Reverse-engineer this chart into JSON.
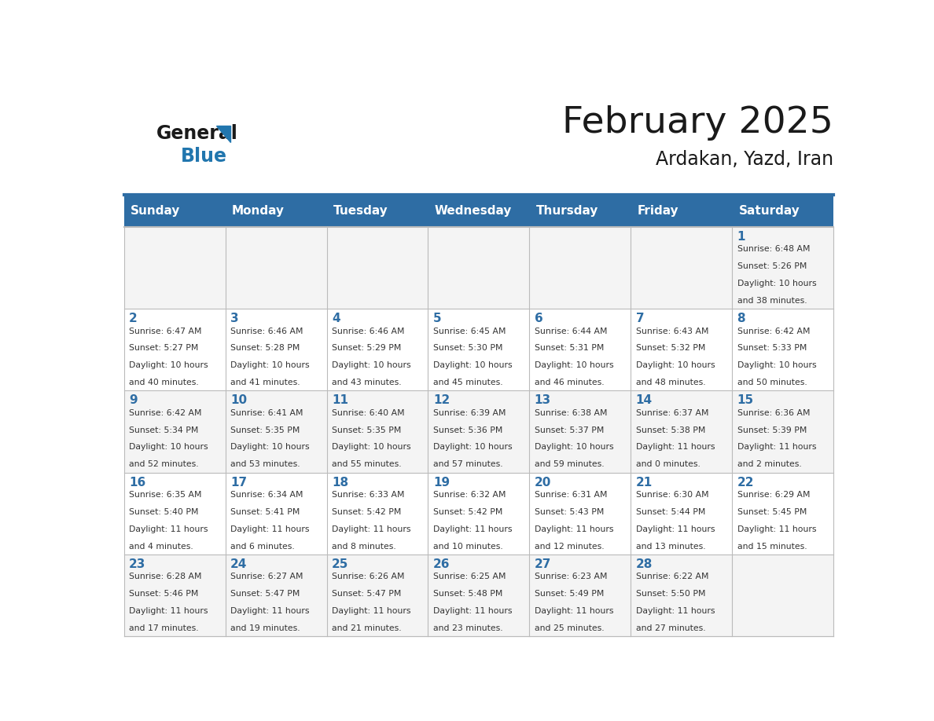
{
  "title": "February 2025",
  "subtitle": "Ardakan, Yazd, Iran",
  "days_of_week": [
    "Sunday",
    "Monday",
    "Tuesday",
    "Wednesday",
    "Thursday",
    "Friday",
    "Saturday"
  ],
  "header_bg": "#2E6DA4",
  "header_text": "#FFFFFF",
  "cell_bg_light": "#F4F4F4",
  "cell_bg_white": "#FFFFFF",
  "cell_border": "#BBBBBB",
  "day_number_color": "#2E6DA4",
  "info_text_color": "#333333",
  "title_color": "#1a1a1a",
  "logo_general_color": "#1a1a1a",
  "logo_blue_color": "#2176AE",
  "top_border_color": "#2E6DA4",
  "calendar_data": [
    [
      null,
      null,
      null,
      null,
      null,
      null,
      1
    ],
    [
      2,
      3,
      4,
      5,
      6,
      7,
      8
    ],
    [
      9,
      10,
      11,
      12,
      13,
      14,
      15
    ],
    [
      16,
      17,
      18,
      19,
      20,
      21,
      22
    ],
    [
      23,
      24,
      25,
      26,
      27,
      28,
      null
    ]
  ],
  "cell_info": {
    "1": {
      "sunrise": "6:48 AM",
      "sunset": "5:26 PM",
      "daylight_line1": "10 hours",
      "daylight_line2": "and 38 minutes."
    },
    "2": {
      "sunrise": "6:47 AM",
      "sunset": "5:27 PM",
      "daylight_line1": "10 hours",
      "daylight_line2": "and 40 minutes."
    },
    "3": {
      "sunrise": "6:46 AM",
      "sunset": "5:28 PM",
      "daylight_line1": "10 hours",
      "daylight_line2": "and 41 minutes."
    },
    "4": {
      "sunrise": "6:46 AM",
      "sunset": "5:29 PM",
      "daylight_line1": "10 hours",
      "daylight_line2": "and 43 minutes."
    },
    "5": {
      "sunrise": "6:45 AM",
      "sunset": "5:30 PM",
      "daylight_line1": "10 hours",
      "daylight_line2": "and 45 minutes."
    },
    "6": {
      "sunrise": "6:44 AM",
      "sunset": "5:31 PM",
      "daylight_line1": "10 hours",
      "daylight_line2": "and 46 minutes."
    },
    "7": {
      "sunrise": "6:43 AM",
      "sunset": "5:32 PM",
      "daylight_line1": "10 hours",
      "daylight_line2": "and 48 minutes."
    },
    "8": {
      "sunrise": "6:42 AM",
      "sunset": "5:33 PM",
      "daylight_line1": "10 hours",
      "daylight_line2": "and 50 minutes."
    },
    "9": {
      "sunrise": "6:42 AM",
      "sunset": "5:34 PM",
      "daylight_line1": "10 hours",
      "daylight_line2": "and 52 minutes."
    },
    "10": {
      "sunrise": "6:41 AM",
      "sunset": "5:35 PM",
      "daylight_line1": "10 hours",
      "daylight_line2": "and 53 minutes."
    },
    "11": {
      "sunrise": "6:40 AM",
      "sunset": "5:35 PM",
      "daylight_line1": "10 hours",
      "daylight_line2": "and 55 minutes."
    },
    "12": {
      "sunrise": "6:39 AM",
      "sunset": "5:36 PM",
      "daylight_line1": "10 hours",
      "daylight_line2": "and 57 minutes."
    },
    "13": {
      "sunrise": "6:38 AM",
      "sunset": "5:37 PM",
      "daylight_line1": "10 hours",
      "daylight_line2": "and 59 minutes."
    },
    "14": {
      "sunrise": "6:37 AM",
      "sunset": "5:38 PM",
      "daylight_line1": "11 hours",
      "daylight_line2": "and 0 minutes."
    },
    "15": {
      "sunrise": "6:36 AM",
      "sunset": "5:39 PM",
      "daylight_line1": "11 hours",
      "daylight_line2": "and 2 minutes."
    },
    "16": {
      "sunrise": "6:35 AM",
      "sunset": "5:40 PM",
      "daylight_line1": "11 hours",
      "daylight_line2": "and 4 minutes."
    },
    "17": {
      "sunrise": "6:34 AM",
      "sunset": "5:41 PM",
      "daylight_line1": "11 hours",
      "daylight_line2": "and 6 minutes."
    },
    "18": {
      "sunrise": "6:33 AM",
      "sunset": "5:42 PM",
      "daylight_line1": "11 hours",
      "daylight_line2": "and 8 minutes."
    },
    "19": {
      "sunrise": "6:32 AM",
      "sunset": "5:42 PM",
      "daylight_line1": "11 hours",
      "daylight_line2": "and 10 minutes."
    },
    "20": {
      "sunrise": "6:31 AM",
      "sunset": "5:43 PM",
      "daylight_line1": "11 hours",
      "daylight_line2": "and 12 minutes."
    },
    "21": {
      "sunrise": "6:30 AM",
      "sunset": "5:44 PM",
      "daylight_line1": "11 hours",
      "daylight_line2": "and 13 minutes."
    },
    "22": {
      "sunrise": "6:29 AM",
      "sunset": "5:45 PM",
      "daylight_line1": "11 hours",
      "daylight_line2": "and 15 minutes."
    },
    "23": {
      "sunrise": "6:28 AM",
      "sunset": "5:46 PM",
      "daylight_line1": "11 hours",
      "daylight_line2": "and 17 minutes."
    },
    "24": {
      "sunrise": "6:27 AM",
      "sunset": "5:47 PM",
      "daylight_line1": "11 hours",
      "daylight_line2": "and 19 minutes."
    },
    "25": {
      "sunrise": "6:26 AM",
      "sunset": "5:47 PM",
      "daylight_line1": "11 hours",
      "daylight_line2": "and 21 minutes."
    },
    "26": {
      "sunrise": "6:25 AM",
      "sunset": "5:48 PM",
      "daylight_line1": "11 hours",
      "daylight_line2": "and 23 minutes."
    },
    "27": {
      "sunrise": "6:23 AM",
      "sunset": "5:49 PM",
      "daylight_line1": "11 hours",
      "daylight_line2": "and 25 minutes."
    },
    "28": {
      "sunrise": "6:22 AM",
      "sunset": "5:50 PM",
      "daylight_line1": "11 hours",
      "daylight_line2": "and 27 minutes."
    }
  }
}
